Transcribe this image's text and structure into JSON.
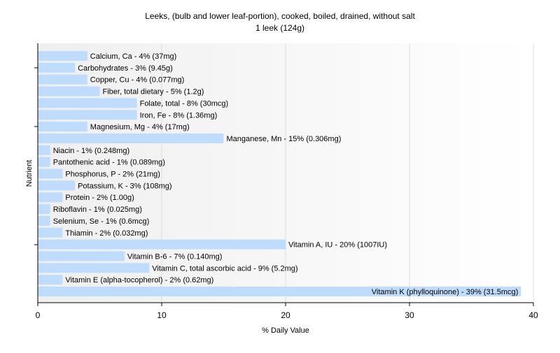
{
  "chart_data": {
    "type": "bar",
    "orientation": "horizontal",
    "title": "Leeks, (bulb and lower leaf-portion), cooked, boiled, drained, without salt",
    "subtitle": "1 leek (124g)",
    "xlabel": "% Daily Value",
    "ylabel": "Nutrient",
    "xlim": [
      0,
      40
    ],
    "xticks": [
      0,
      10,
      20,
      30,
      40
    ],
    "grid": true,
    "bar_color": "#c0dcfc",
    "categories": [
      "Calcium, Ca",
      "Carbohydrates",
      "Copper, Cu",
      "Fiber, total dietary",
      "Folate, total",
      "Iron, Fe",
      "Magnesium, Mg",
      "Manganese, Mn",
      "Niacin",
      "Pantothenic acid",
      "Phosphorus, P",
      "Potassium, K",
      "Protein",
      "Riboflavin",
      "Selenium, Se",
      "Thiamin",
      "Vitamin A, IU",
      "Vitamin B-6",
      "Vitamin C, total ascorbic acid",
      "Vitamin E (alpha-tocopherol)",
      "Vitamin K (phylloquinone)"
    ],
    "values": [
      4,
      3,
      4,
      5,
      8,
      8,
      4,
      15,
      1,
      1,
      2,
      3,
      2,
      1,
      1,
      2,
      20,
      7,
      9,
      2,
      39
    ],
    "labels": [
      "Calcium, Ca - 4% (37mg)",
      "Carbohydrates - 3% (9.45g)",
      "Copper, Cu - 4% (0.077mg)",
      "Fiber, total dietary - 5% (1.2g)",
      "Folate, total - 8% (30mcg)",
      "Iron, Fe - 8% (1.36mg)",
      "Magnesium, Mg - 4% (17mg)",
      "Manganese, Mn - 15% (0.306mg)",
      "Niacin - 1% (0.248mg)",
      "Pantothenic acid - 1% (0.089mg)",
      "Phosphorus, P - 2% (21mg)",
      "Potassium, K - 3% (108mg)",
      "Protein - 2% (1.00g)",
      "Riboflavin - 1% (0.025mg)",
      "Selenium, Se - 1% (0.6mcg)",
      "Thiamin - 2% (0.032mg)",
      "Vitamin A, IU - 20% (1007IU)",
      "Vitamin B-6 - 7% (0.140mg)",
      "Vitamin C, total ascorbic acid - 9% (5.2mg)",
      "Vitamin E (alpha-tocopherol) - 2% (0.62mg)",
      "Vitamin K (phylloquinone) - 39% (31.5mcg)"
    ]
  }
}
